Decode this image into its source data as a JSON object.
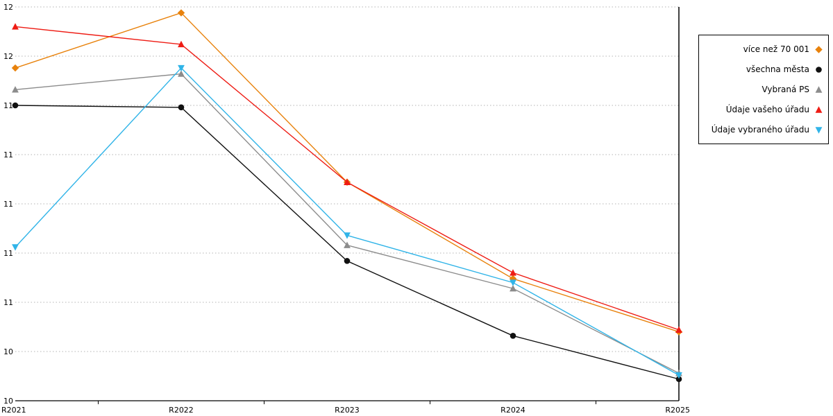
{
  "chart_data": {
    "type": "line",
    "title": "",
    "xlabel": "",
    "ylabel": "",
    "x_categories": [
      "R2021",
      "R2022",
      "R2023",
      "R2024",
      "R2025"
    ],
    "y_axis": {
      "min": 10,
      "max": 12,
      "tick_count": 9,
      "tick_labels_top_to_bottom": [
        "12",
        "12",
        "11",
        "11",
        "11",
        "11",
        "11",
        "10",
        "10"
      ]
    },
    "grid": "horizontal-dotted",
    "legend_position": "outside-top-right",
    "colors": {
      "grid": "#b3b3b3",
      "axis": "#000000"
    },
    "series": [
      {
        "name": "více než 70 001",
        "color": "#e8820c",
        "marker": "diamond",
        "values": [
          11.69,
          11.97,
          11.11,
          10.62,
          10.35
        ]
      },
      {
        "name": "všechna města",
        "color": "#111111",
        "marker": "circle",
        "values": [
          11.5,
          11.49,
          10.71,
          10.33,
          10.11
        ]
      },
      {
        "name": "Vybraná PS",
        "color": "#8c8c8c",
        "marker": "triangle-up",
        "values": [
          11.58,
          11.66,
          10.79,
          10.57,
          10.14
        ]
      },
      {
        "name": "Údaje vašeho úřadu",
        "color": "#ee1c14",
        "marker": "triangle-up",
        "values": [
          11.9,
          11.81,
          11.11,
          10.65,
          10.36
        ]
      },
      {
        "name": "Údaje vybraného úřadu",
        "color": "#30b4e8",
        "marker": "triangle-down",
        "values": [
          10.78,
          11.69,
          10.84,
          10.6,
          10.13
        ]
      }
    ]
  }
}
